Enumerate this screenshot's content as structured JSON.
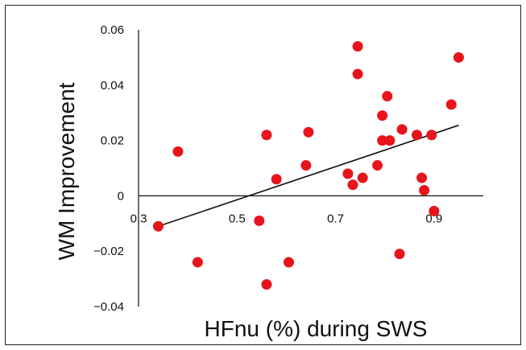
{
  "chart_data": {
    "type": "scatter",
    "title": "",
    "xlabel": "HFnu (%) during SWS",
    "ylabel": "WM Improvement",
    "xlim": [
      0.3,
      1.0
    ],
    "ylim": [
      -0.04,
      0.06
    ],
    "x_ticks": [
      0.3,
      0.5,
      0.7,
      0.9
    ],
    "x_tick_labels": [
      "0.3",
      "0.5",
      "0.7",
      "0.9"
    ],
    "y_ticks": [
      0.06,
      0.04,
      0.02,
      0,
      -0.02,
      -0.04
    ],
    "y_tick_labels": [
      "0.06",
      "0.04",
      "0.02",
      "0",
      "−0.02",
      "−0.04"
    ],
    "grid": false,
    "point_color": "#e8141b",
    "trendline": {
      "x": [
        0.34,
        0.95
      ],
      "y": [
        -0.011,
        0.0255
      ],
      "color": "#111111"
    },
    "series": [
      {
        "points": [
          [
            0.34,
            -0.011
          ],
          [
            0.38,
            0.016
          ],
          [
            0.42,
            -0.024
          ],
          [
            0.545,
            -0.009
          ],
          [
            0.56,
            0.022
          ],
          [
            0.56,
            -0.032
          ],
          [
            0.58,
            0.006
          ],
          [
            0.605,
            -0.024
          ],
          [
            0.64,
            0.011
          ],
          [
            0.645,
            0.023
          ],
          [
            0.725,
            0.008
          ],
          [
            0.735,
            0.004
          ],
          [
            0.745,
            0.054
          ],
          [
            0.745,
            0.044
          ],
          [
            0.755,
            0.0065
          ],
          [
            0.785,
            0.011
          ],
          [
            0.795,
            0.029
          ],
          [
            0.795,
            0.02
          ],
          [
            0.805,
            0.036
          ],
          [
            0.81,
            0.02
          ],
          [
            0.83,
            -0.021
          ],
          [
            0.835,
            0.024
          ],
          [
            0.865,
            0.022
          ],
          [
            0.875,
            0.0065
          ],
          [
            0.88,
            0.002
          ],
          [
            0.895,
            0.022
          ],
          [
            0.9,
            -0.0055
          ],
          [
            0.935,
            0.033
          ],
          [
            0.95,
            0.05
          ]
        ]
      }
    ]
  }
}
